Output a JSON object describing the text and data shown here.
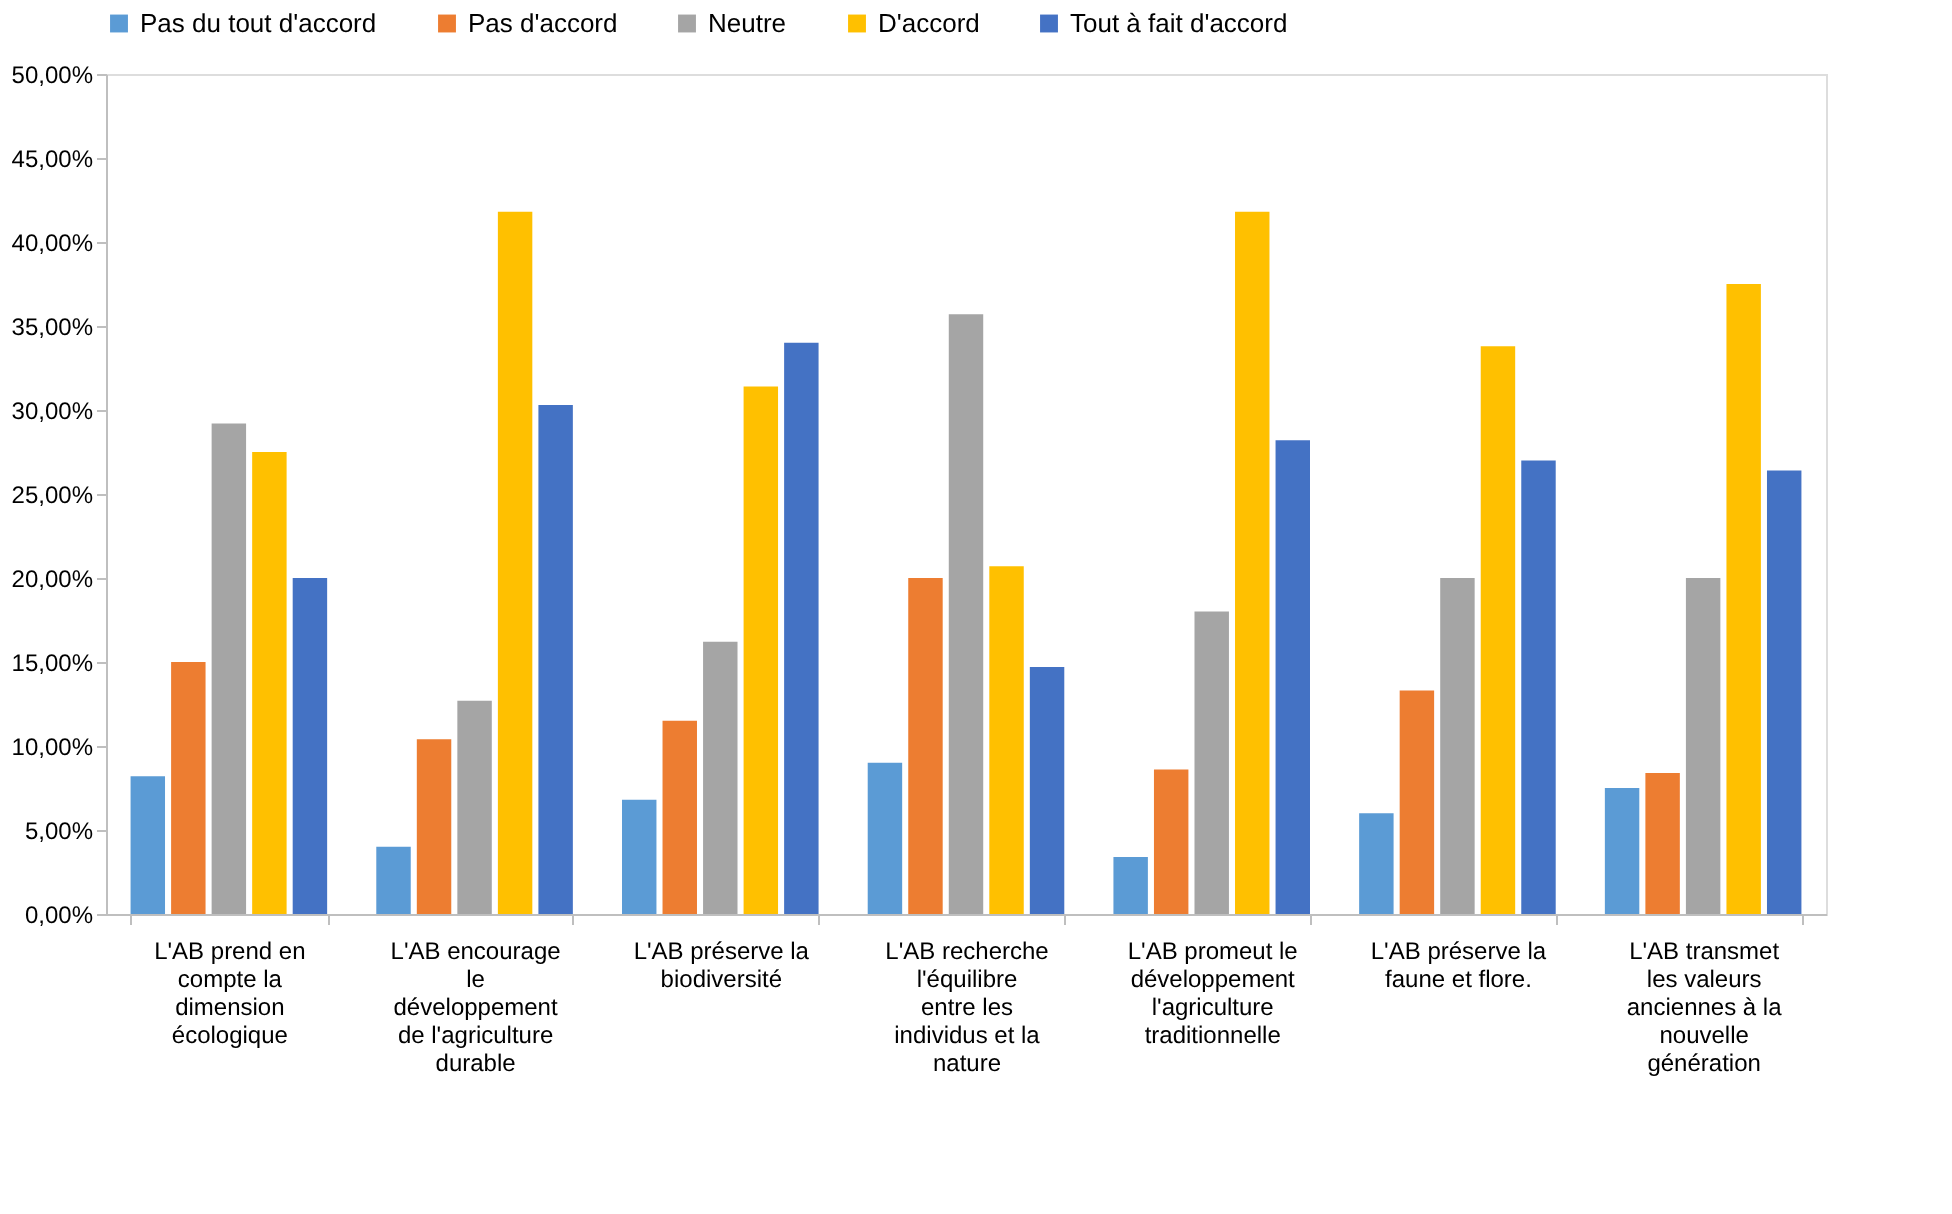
{
  "chart_data": {
    "type": "bar",
    "categories": [
      "L'AB prend en\ncompte la\ndimension\nécologique",
      "L'AB encourage\nle\ndéveloppement\nde l'agriculture\ndurable",
      "L'AB préserve la\nbiodiversité",
      "L'AB recherche\nl'équilibre\nentre les\nindividus et la\nnature",
      "L'AB promeut le\ndéveloppement\nl'agriculture\ntraditionnelle",
      "L'AB préserve la\nfaune et flore.",
      "L'AB transmet\nles valeurs\nanciennes à la\nnouvelle\ngénération"
    ],
    "series": [
      {
        "name": "Pas du tout d'accord",
        "color": "#5b9bd5",
        "values": [
          8.2,
          4.0,
          6.8,
          9.0,
          3.4,
          6.0,
          7.5
        ]
      },
      {
        "name": "Pas d'accord",
        "color": "#ed7d31",
        "values": [
          15.0,
          10.4,
          11.5,
          20.0,
          8.6,
          13.3,
          8.4
        ]
      },
      {
        "name": "Neutre",
        "color": "#a5a5a5",
        "values": [
          29.2,
          12.7,
          16.2,
          35.7,
          18.0,
          20.0,
          20.0
        ]
      },
      {
        "name": "D'accord",
        "color": "#ffc000",
        "values": [
          27.5,
          41.8,
          31.4,
          20.7,
          41.8,
          33.8,
          37.5
        ]
      },
      {
        "name": "Tout à fait d'accord",
        "color": "#4472c4",
        "values": [
          20.0,
          30.3,
          34.0,
          14.7,
          28.2,
          27.0,
          26.4
        ]
      }
    ],
    "ylim": [
      0,
      50
    ],
    "yticks": [
      {
        "value": 0,
        "label": "0,00%"
      },
      {
        "value": 5,
        "label": "5,00%"
      },
      {
        "value": 10,
        "label": "10,00%"
      },
      {
        "value": 15,
        "label": "15,00%"
      },
      {
        "value": 20,
        "label": "20,00%"
      },
      {
        "value": 25,
        "label": "25,00%"
      },
      {
        "value": 30,
        "label": "30,00%"
      },
      {
        "value": 35,
        "label": "35,00%"
      },
      {
        "value": 40,
        "label": "40,00%"
      },
      {
        "value": 45,
        "label": "45,00%"
      },
      {
        "value": 50,
        "label": "50,00%"
      }
    ],
    "grid": false,
    "legend": "top"
  }
}
